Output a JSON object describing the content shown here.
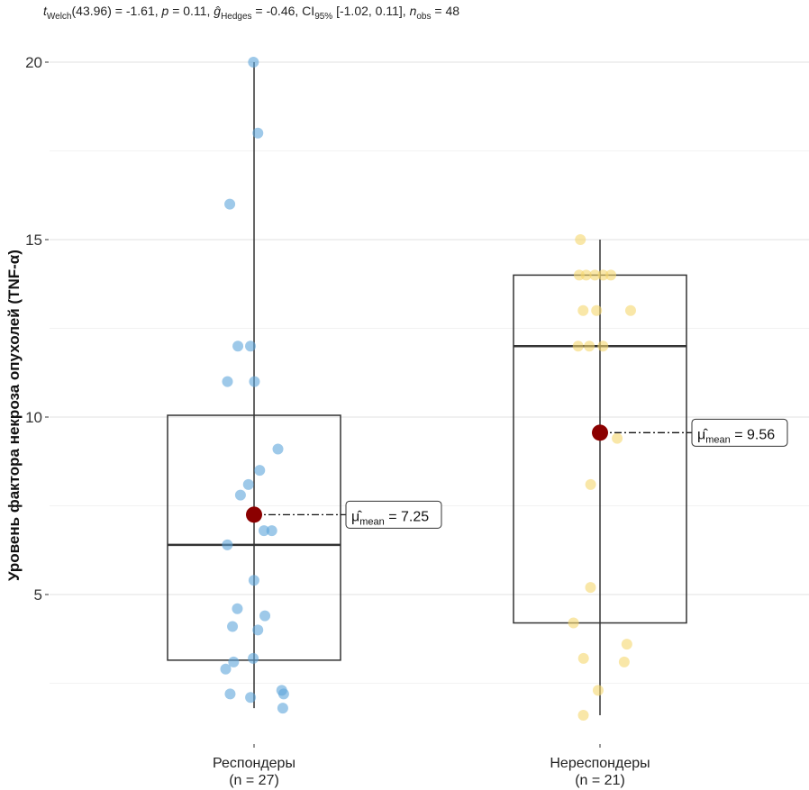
{
  "chart_data": {
    "type": "box",
    "title": "",
    "subtitle": {
      "t_label": "t",
      "t_sub": "Welch",
      "t_df": "(43.96) = -1.61, ",
      "p_label": "p",
      "p_val": " = 0.11, ",
      "g_label": "ĝ",
      "g_sub": "Hedges",
      "g_val": " = -0.46, CI",
      "ci_sub": "95%",
      "ci_val": " [-1.02, 0.11], ",
      "n_label": "n",
      "n_sub": "obs",
      "n_val": " = 48"
    },
    "xlabel": "",
    "ylabel": "Уровень фактора некроза опухолей (TNF-α)",
    "ylim": [
      1.2,
      21.2
    ],
    "yticks": [
      5,
      10,
      15,
      20
    ],
    "grid": true,
    "categories": [
      "Респондеры",
      "Нереспондеры"
    ],
    "category_n": [
      "(n = 27)",
      "(n = 21)"
    ],
    "groups": [
      {
        "name": "Респондеры",
        "n_label": "(n = 27)",
        "color": "#5DA5DA",
        "box": {
          "q1": 3.15,
          "median": 6.4,
          "q3": 10.05,
          "whisker_low": 1.8,
          "whisker_high": 20
        },
        "mean": 7.25,
        "mean_label": "7.25",
        "points": [
          20,
          18,
          16,
          12,
          12,
          11,
          11,
          9.1,
          8.5,
          8.1,
          7.8,
          6.8,
          6.8,
          6.4,
          5.4,
          4.6,
          4.4,
          4.1,
          4.0,
          3.2,
          3.1,
          2.9,
          2.3,
          2.2,
          2.2,
          2.1,
          1.8
        ]
      },
      {
        "name": "Нереспондеры",
        "n_label": "(n = 21)",
        "color": "#F5D76E",
        "box": {
          "q1": 4.2,
          "median": 12,
          "q3": 14,
          "whisker_low": 1.6,
          "whisker_high": 15
        },
        "mean": 9.56,
        "mean_label": "9.56",
        "points": [
          15,
          14,
          14,
          14,
          14,
          14,
          13,
          13,
          13,
          12,
          12,
          12,
          9.4,
          8.1,
          5.2,
          4.2,
          3.6,
          3.2,
          3.1,
          2.3,
          1.6
        ]
      }
    ],
    "mean_point_color": "#8B0000",
    "mean_symbol": "μ̂",
    "mean_sub": "mean"
  }
}
